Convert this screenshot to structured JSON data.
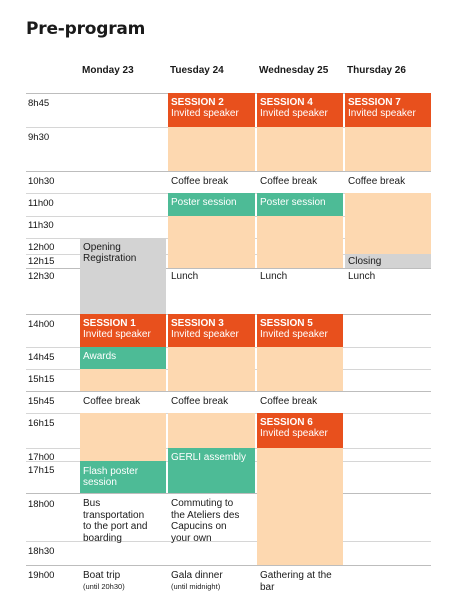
{
  "title": "Pre-program",
  "days": [
    "Monday 23",
    "Tuesday 24",
    "Wednesday 25",
    "Thursday 26"
  ],
  "times": [
    "8h45",
    "9h30",
    "10h30",
    "11h00",
    "11h30",
    "12h00",
    "12h15",
    "12h30",
    "14h00",
    "14h45",
    "15h15",
    "15h45",
    "16h15",
    "17h00",
    "17h15",
    "18h00",
    "18h30",
    "19h00"
  ],
  "colors": {
    "session": "#e8501d",
    "slot": "#fdd8b0",
    "poster": "#4dbb96",
    "gray": "#d3d3d3"
  },
  "monday": {
    "opening": "Opening",
    "registration": "Registration",
    "session1": {
      "title": "SESSION 1",
      "subtitle": "Invited speaker"
    },
    "awards": "Awards",
    "coffee": "Coffee break",
    "flash": [
      "Flash poster",
      "session"
    ],
    "bus": [
      "Bus",
      "transportation",
      "to the port and",
      "boarding"
    ],
    "boat": "Boat trip",
    "boat_note": "(until 20h30)"
  },
  "tuesday": {
    "session2": {
      "title": "SESSION 2",
      "subtitle": "Invited speaker"
    },
    "coffee_am": "Coffee break",
    "poster": "Poster session",
    "lunch": "Lunch",
    "session3": {
      "title": "SESSION 3",
      "subtitle": "Invited speaker"
    },
    "coffee_pm": "Coffee break",
    "gerli": "GERLI assembly",
    "commute": [
      "Commuting to",
      "the Ateliers des",
      "Capucins on",
      "your own"
    ],
    "gala": "Gala dinner",
    "gala_note": "(until midnight)"
  },
  "wednesday": {
    "session4": {
      "title": "SESSION 4",
      "subtitle": "Invited speaker"
    },
    "coffee_am": "Coffee break",
    "poster": "Poster session",
    "lunch": "Lunch",
    "session5": {
      "title": "SESSION 5",
      "subtitle": "Invited speaker"
    },
    "coffee_pm": "Coffee break",
    "session6": {
      "title": "SESSION 6",
      "subtitle": "Invited speaker"
    },
    "gathering": [
      "Gathering at the",
      "bar"
    ]
  },
  "thursday": {
    "session7": {
      "title": "SESSION 7",
      "subtitle": "Invited speaker"
    },
    "coffee": "Coffee break",
    "closing": "Closing",
    "lunch": "Lunch"
  }
}
